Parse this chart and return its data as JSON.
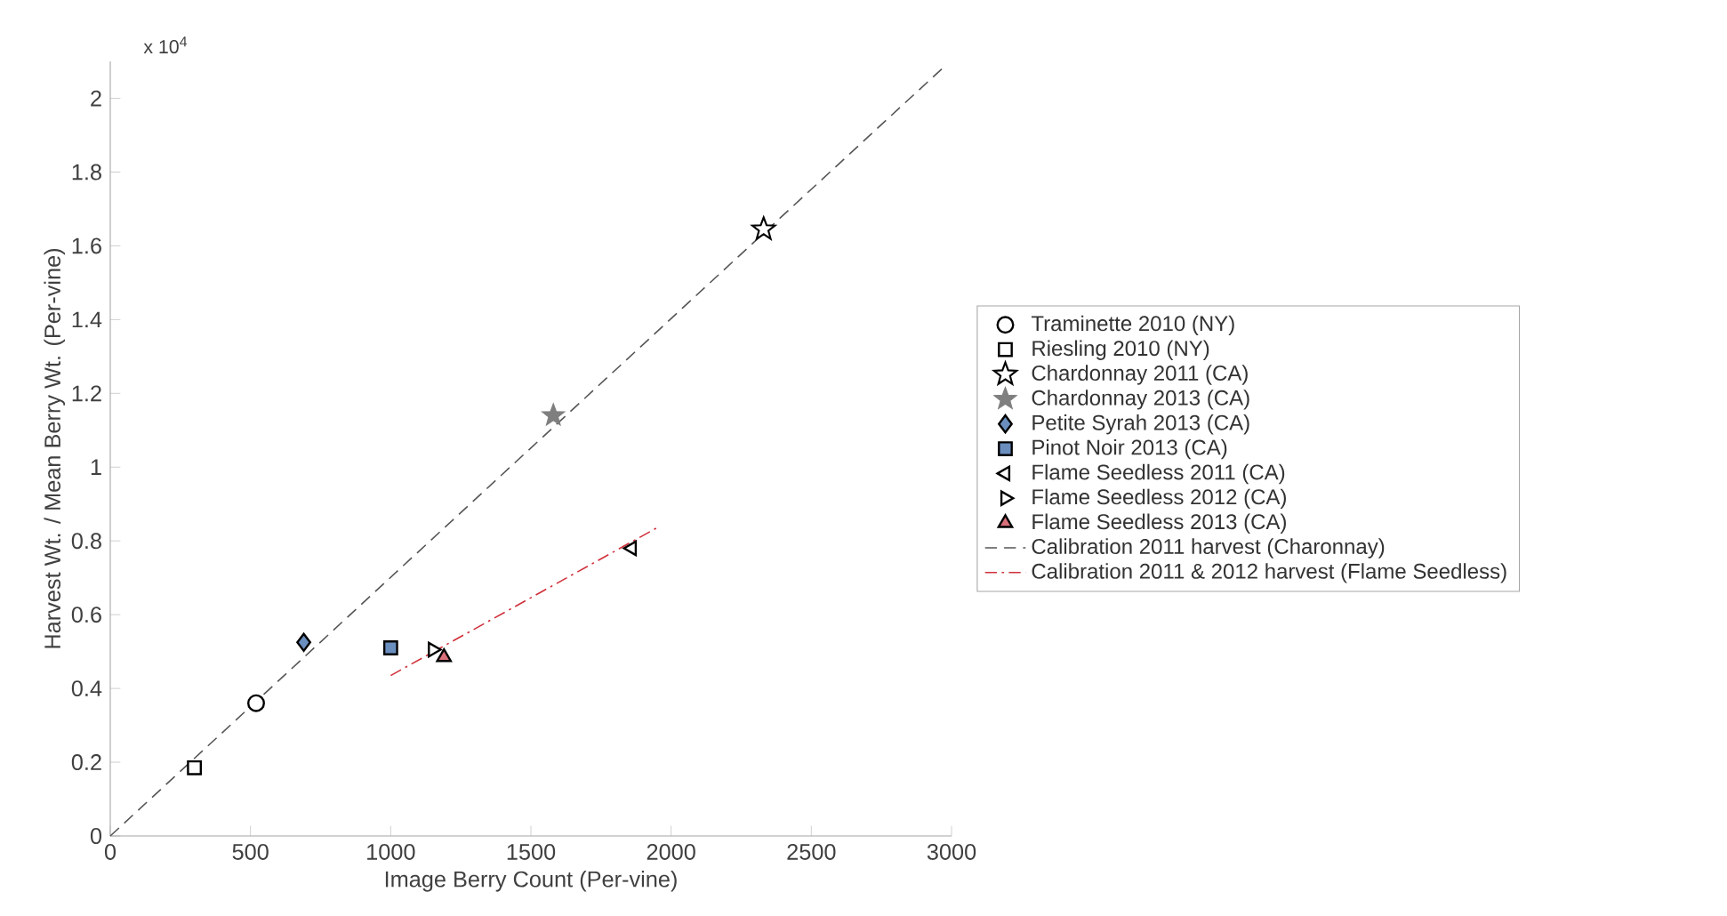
{
  "chart_data": {
    "type": "scatter",
    "xlabel": "Image Berry Count (Per-vine)",
    "ylabel": "Harvest Wt. / Mean Berry Wt. (Per-vine)",
    "annotations": [
      "x 10$^{4}$"
    ],
    "xlim": [
      0,
      3000
    ],
    "ylim": [
      0,
      2.1
    ],
    "xticks": [
      0,
      500,
      1000,
      1500,
      2000,
      2500,
      3000
    ],
    "yticks": [
      0,
      0.2,
      0.4,
      0.6,
      0.8,
      1,
      1.2,
      1.4,
      1.6,
      1.8,
      2
    ],
    "legend": "right",
    "grid": false,
    "series": [
      {
        "name": "Traminette 2010 (NY)",
        "marker": "circle",
        "color": "#000000",
        "x": [
          520
        ],
        "values": [
          0.36
        ]
      },
      {
        "name": "Riesling 2010 (NY)",
        "marker": "square",
        "color": "#000000",
        "x": [
          300
        ],
        "values": [
          0.185
        ]
      },
      {
        "name": "Chardonnay 2011 (CA)",
        "marker": "star",
        "color": "#000000",
        "x": [
          2330
        ],
        "values": [
          1.645
        ]
      },
      {
        "name": "Chardonnay 2013 (CA)",
        "marker": "star",
        "color": "#7f7f7f",
        "x": [
          1580
        ],
        "values": [
          1.14
        ]
      },
      {
        "name": "Petite Syrah 2013 (CA)",
        "marker": "diamond",
        "color": "#6a8fbf",
        "x": [
          690
        ],
        "values": [
          0.525
        ]
      },
      {
        "name": "Pinot Noir 2013 (CA)",
        "marker": "square",
        "color": "#6a8fbf",
        "x": [
          1000
        ],
        "values": [
          0.51
        ]
      },
      {
        "name": "Flame Seedless 2011 (CA)",
        "marker": "triangle-left",
        "color": "#000000",
        "x": [
          1860
        ],
        "values": [
          0.78
        ]
      },
      {
        "name": "Flame Seedless 2012 (CA)",
        "marker": "triangle-right",
        "color": "#000000",
        "x": [
          1150
        ],
        "values": [
          0.505
        ]
      },
      {
        "name": "Flame Seedless 2013 (CA)",
        "marker": "triangle",
        "color": "#d9707a",
        "x": [
          1190
        ],
        "values": [
          0.485
        ]
      },
      {
        "name": "Calibration 2011 harvest (Charonnay)",
        "type": "line",
        "line_style": "dashed",
        "color": "#555555",
        "x": [
          0,
          2980
        ],
        "values": [
          0,
          2.09
        ]
      },
      {
        "name": "Calibration 2011 & 2012 harvest (Flame Seedless)",
        "type": "line",
        "line_style": "dashdot",
        "color": "#d0303a",
        "x": [
          1000,
          1960
        ],
        "values": [
          0.435,
          0.84
        ]
      }
    ]
  }
}
